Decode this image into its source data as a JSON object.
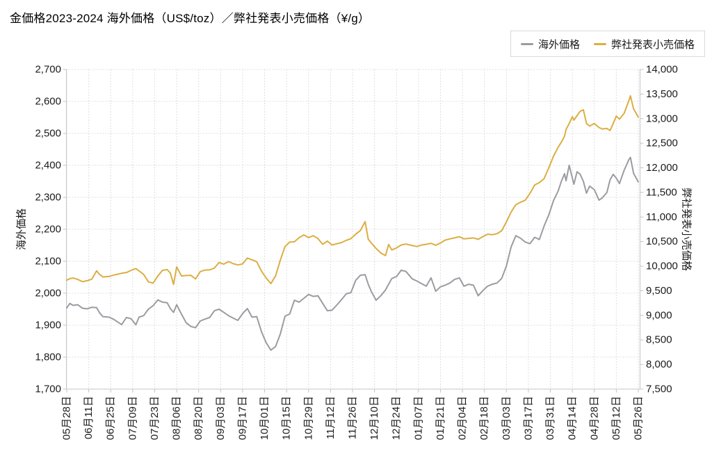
{
  "title": "金価格2023-2024 海外価格（US$/toz）／弊社発表小売価格（¥/g）",
  "legend": {
    "items": [
      {
        "label": "海外価格",
        "color": "#9a9ca1"
      },
      {
        "label": "弊社発表小売価格",
        "color": "#dbae42"
      }
    ]
  },
  "y_left": {
    "title": "海外価格",
    "unit": "US$/toz",
    "min": 1700,
    "max": 2700,
    "step": 100,
    "ticks": [
      "2,700",
      "2,600",
      "2,500",
      "2,400",
      "2,300",
      "2,200",
      "2,100",
      "2,000",
      "1,900",
      "1,800",
      "1,700"
    ]
  },
  "y_right": {
    "title": "弊社発表小売価格",
    "unit": "¥/g",
    "min": 7500,
    "max": 14000,
    "step": 500,
    "ticks": [
      "14,000",
      "13,500",
      "13,000",
      "12,500",
      "12,000",
      "11,500",
      "11,000",
      "10,500",
      "10,000",
      "9,500",
      "9,000",
      "8,500",
      "8,000",
      "7,500"
    ]
  },
  "x_axis": {
    "tick_interval_days": 14,
    "tick_labels": [
      "05月28日",
      "06月11日",
      "06月25日",
      "07月09日",
      "07月23日",
      "08月06日",
      "08月20日",
      "09月03日",
      "09月17日",
      "10月01日",
      "10月15日",
      "10月29日",
      "11月12日",
      "11月26日",
      "12月10日",
      "12月24日",
      "01月07日",
      "01月21日",
      "02月04日",
      "02月18日",
      "03月03日",
      "03月17日",
      "03月31日",
      "04月14日",
      "04月28日",
      "05月12日",
      "05月26日"
    ]
  },
  "chart_data": {
    "type": "line",
    "title": "金価格2023-2024 海外価格（US$/toz）／弊社発表小売価格（¥/g）",
    "grid": true,
    "legend_position": "top-right",
    "x_range_days": [
      0,
      364
    ],
    "ylim_left": [
      1700,
      2700
    ],
    "ylim_right": [
      7500,
      14000
    ],
    "x_days": [
      0,
      2,
      4,
      7,
      10,
      13,
      16,
      19,
      21,
      23,
      27,
      30,
      33,
      35,
      38,
      41,
      44,
      46,
      49,
      52,
      55,
      58,
      61,
      64,
      66,
      68,
      70,
      73,
      76,
      79,
      82,
      85,
      88,
      91,
      94,
      97,
      100,
      103,
      106,
      109,
      112,
      115,
      118,
      121,
      124,
      127,
      130,
      133,
      136,
      139,
      142,
      145,
      148,
      151,
      154,
      157,
      160,
      163,
      166,
      169,
      172,
      175,
      178,
      181,
      184,
      187,
      190,
      192,
      194,
      197,
      200,
      203,
      205,
      207,
      210,
      213,
      216,
      220,
      223,
      226,
      229,
      232,
      235,
      238,
      241,
      244,
      247,
      250,
      253,
      256,
      259,
      262,
      265,
      268,
      271,
      274,
      277,
      280,
      283,
      286,
      289,
      292,
      295,
      298,
      301,
      304,
      307,
      310,
      313,
      315,
      317,
      318,
      320,
      322,
      323,
      325,
      327,
      329,
      331,
      333,
      336,
      339,
      341,
      344,
      346,
      348,
      350,
      352,
      355,
      358,
      359,
      361,
      364
    ],
    "series": [
      {
        "name": "海外価格",
        "axis": "left",
        "color": "#9a9ca1",
        "values": [
          1954,
          1968,
          1962,
          1964,
          1953,
          1951,
          1956,
          1955,
          1938,
          1927,
          1925,
          1918,
          1908,
          1902,
          1924,
          1920,
          1901,
          1925,
          1930,
          1950,
          1961,
          1979,
          1972,
          1970,
          1952,
          1940,
          1964,
          1935,
          1908,
          1896,
          1892,
          1913,
          1919,
          1924,
          1945,
          1950,
          1940,
          1930,
          1922,
          1915,
          1936,
          1952,
          1925,
          1927,
          1880,
          1845,
          1822,
          1833,
          1872,
          1928,
          1935,
          1978,
          1972,
          1984,
          1996,
          1990,
          1992,
          1968,
          1945,
          1947,
          1963,
          1980,
          1998,
          2002,
          2040,
          2056,
          2058,
          2028,
          2005,
          1978,
          1992,
          2010,
          2028,
          2046,
          2052,
          2072,
          2068,
          2045,
          2038,
          2030,
          2022,
          2048,
          2006,
          2020,
          2025,
          2032,
          2043,
          2048,
          2022,
          2028,
          2025,
          1992,
          2008,
          2022,
          2028,
          2032,
          2046,
          2085,
          2145,
          2180,
          2172,
          2160,
          2155,
          2175,
          2168,
          2210,
          2245,
          2290,
          2320,
          2350,
          2374,
          2352,
          2400,
          2360,
          2341,
          2380,
          2372,
          2350,
          2313,
          2335,
          2324,
          2291,
          2298,
          2315,
          2355,
          2372,
          2360,
          2343,
          2385,
          2418,
          2425,
          2375,
          2348
        ]
      },
      {
        "name": "弊社発表小売価格",
        "axis": "right",
        "color": "#dbae42",
        "values": [
          9715,
          9745,
          9760,
          9730,
          9685,
          9705,
          9735,
          9905,
          9830,
          9780,
          9790,
          9820,
          9840,
          9855,
          9870,
          9915,
          9950,
          9905,
          9830,
          9680,
          9655,
          9800,
          9915,
          9930,
          9860,
          9630,
          9985,
          9800,
          9810,
          9815,
          9740,
          9890,
          9920,
          9925,
          9960,
          10075,
          10040,
          10095,
          10050,
          10025,
          10045,
          10165,
          10130,
          10090,
          9900,
          9760,
          9645,
          9800,
          10120,
          10400,
          10490,
          10495,
          10580,
          10635,
          10580,
          10620,
          10560,
          10445,
          10510,
          10430,
          10455,
          10480,
          10525,
          10560,
          10650,
          10725,
          10905,
          10550,
          10470,
          10360,
          10270,
          10215,
          10440,
          10330,
          10370,
          10430,
          10450,
          10420,
          10400,
          10430,
          10445,
          10465,
          10425,
          10470,
          10530,
          10555,
          10575,
          10600,
          10555,
          10565,
          10575,
          10545,
          10600,
          10650,
          10640,
          10660,
          10720,
          10900,
          11100,
          11250,
          11300,
          11340,
          11480,
          11650,
          11700,
          11780,
          12000,
          12240,
          12420,
          12520,
          12640,
          12780,
          12900,
          13040,
          12970,
          13060,
          13150,
          13180,
          12900,
          12850,
          12900,
          12820,
          12790,
          12800,
          12760,
          12900,
          13050,
          12990,
          13110,
          13370,
          13465,
          13200,
          13030
        ]
      }
    ],
    "style": {
      "grid_color": "#dedede",
      "axis_color": "#c4c4c4",
      "tick_label_color": "#1a1a1a",
      "line_width": 2
    }
  }
}
